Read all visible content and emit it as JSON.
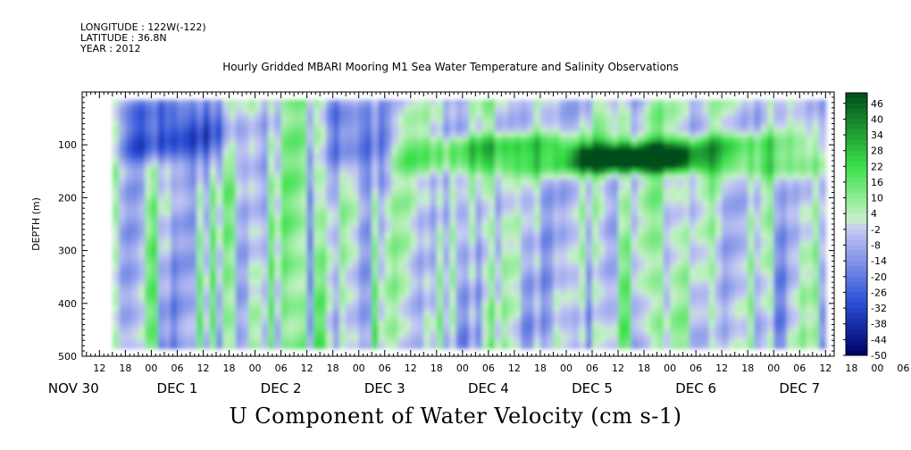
{
  "header": {
    "longitude": "LONGITUDE : 122W(-122)",
    "latitude": "LATITUDE : 36.8N",
    "year": "YEAR : 2012"
  },
  "chart_data": {
    "type": "heatmap",
    "title": "Hourly Gridded MBARI Mooring M1 Sea Water Temperature and Salinity Observations",
    "xlabel": "U Component of Water Velocity (cm s-1)",
    "ylabel": "DEPTH (m)",
    "ylim": [
      0,
      500
    ],
    "y_reversed": true,
    "y_ticks": [
      100,
      200,
      300,
      400,
      500
    ],
    "x_hours_start": 8,
    "x_hours_end": 182,
    "x_hour_tick_labels": [
      "12",
      "18",
      "00",
      "06",
      "12",
      "18",
      "00",
      "06",
      "12",
      "18",
      "00",
      "06",
      "12",
      "18",
      "00",
      "06",
      "12",
      "18",
      "00",
      "06",
      "12",
      "18",
      "00",
      "06",
      "12",
      "18",
      "00",
      "06",
      "12",
      "18",
      "00",
      "06"
    ],
    "day_labels": [
      "NOV 30",
      "DEC  1",
      "DEC  2",
      "DEC  3",
      "DEC  4",
      "DEC  5",
      "DEC  6",
      "DEC  7"
    ],
    "colorbar": {
      "min": -50,
      "max": 50,
      "tick_labels": [
        "46",
        "40",
        "34",
        "28",
        "22",
        "16",
        "10",
        "4",
        "-2",
        "-8",
        "-14",
        "-20",
        "-26",
        "-32",
        "-38",
        "-44",
        "-50"
      ]
    },
    "colors": {
      "neg_dark": "#000066",
      "neg_mid": "#2a4fd6",
      "neg_light": "#c4c8f4",
      "pos_light": "#c6f2c6",
      "pos_mid": "#3ae04a",
      "pos_dark": "#004d1a"
    },
    "data_extent": {
      "start_hour": 15,
      "end_hour": 180,
      "top_depth_m": 15,
      "bottom_depth_m": 485
    },
    "features": [
      {
        "description": "negative core",
        "hours": [
          15,
          45
        ],
        "depth_m": [
          15,
          140
        ],
        "value": -26
      },
      {
        "description": "negative core",
        "hours": [
          65,
          80
        ],
        "depth_m": [
          15,
          170
        ],
        "value": -22
      },
      {
        "description": "positive band",
        "hours": [
          80,
          182
        ],
        "depth_m": [
          80,
          160
        ],
        "value": 28
      },
      {
        "description": "positive core",
        "hours": [
          120,
          150
        ],
        "depth_m": [
          100,
          150
        ],
        "value": 40
      }
    ]
  }
}
